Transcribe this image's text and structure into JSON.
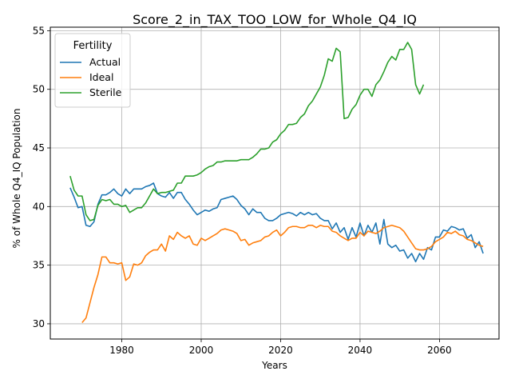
{
  "chart_data": {
    "type": "line",
    "title": "Score_2_in_TAX_TOO_LOW_for_Whole_Q4_IQ",
    "xlabel": "Years",
    "ylabel": "% of Whole Q4_IQ Population",
    "xlim": [
      1962,
      2075
    ],
    "ylim": [
      28.7,
      55.3
    ],
    "xticks": [
      1980,
      2000,
      2020,
      2040,
      2060
    ],
    "yticks": [
      30,
      35,
      40,
      45,
      50,
      55
    ],
    "grid": true,
    "legend": {
      "title": "Fertility",
      "position": "top-left"
    },
    "series": [
      {
        "name": "Actual",
        "color": "#1f77b4",
        "points": [
          [
            1967,
            41.6
          ],
          [
            1968,
            40.8
          ],
          [
            1969,
            39.9
          ],
          [
            1970,
            40.0
          ],
          [
            1971,
            38.4
          ],
          [
            1972,
            38.3
          ],
          [
            1973,
            38.7
          ],
          [
            1974,
            40.2
          ],
          [
            1975,
            41.0
          ],
          [
            1976,
            41.0
          ],
          [
            1977,
            41.2
          ],
          [
            1978,
            41.5
          ],
          [
            1979,
            41.1
          ],
          [
            1980,
            40.9
          ],
          [
            1981,
            41.5
          ],
          [
            1982,
            41.1
          ],
          [
            1983,
            41.5
          ],
          [
            1984,
            41.5
          ],
          [
            1985,
            41.5
          ],
          [
            1986,
            41.7
          ],
          [
            1987,
            41.8
          ],
          [
            1988,
            42.0
          ],
          [
            1989,
            41.1
          ],
          [
            1990,
            40.9
          ],
          [
            1991,
            40.8
          ],
          [
            1992,
            41.2
          ],
          [
            1993,
            40.7
          ],
          [
            1994,
            41.2
          ],
          [
            1995,
            41.2
          ],
          [
            1996,
            40.6
          ],
          [
            1997,
            40.2
          ],
          [
            1998,
            39.7
          ],
          [
            1999,
            39.3
          ],
          [
            2000,
            39.5
          ],
          [
            2001,
            39.7
          ],
          [
            2002,
            39.6
          ],
          [
            2003,
            39.8
          ],
          [
            2004,
            39.9
          ],
          [
            2005,
            40.6
          ],
          [
            2006,
            40.7
          ],
          [
            2007,
            40.8
          ],
          [
            2008,
            40.9
          ],
          [
            2009,
            40.6
          ],
          [
            2010,
            40.1
          ],
          [
            2011,
            39.8
          ],
          [
            2012,
            39.3
          ],
          [
            2013,
            39.8
          ],
          [
            2014,
            39.5
          ],
          [
            2015,
            39.5
          ],
          [
            2016,
            39.0
          ],
          [
            2017,
            38.8
          ],
          [
            2018,
            38.8
          ],
          [
            2019,
            39.0
          ],
          [
            2020,
            39.3
          ],
          [
            2021,
            39.4
          ],
          [
            2022,
            39.5
          ],
          [
            2023,
            39.4
          ],
          [
            2024,
            39.2
          ],
          [
            2025,
            39.5
          ],
          [
            2026,
            39.3
          ],
          [
            2027,
            39.5
          ],
          [
            2028,
            39.3
          ],
          [
            2029,
            39.4
          ],
          [
            2030,
            39.0
          ],
          [
            2031,
            38.8
          ],
          [
            2032,
            38.8
          ],
          [
            2033,
            38.1
          ],
          [
            2034,
            38.6
          ],
          [
            2035,
            37.8
          ],
          [
            2036,
            38.2
          ],
          [
            2037,
            37.2
          ],
          [
            2038,
            38.2
          ],
          [
            2039,
            37.4
          ],
          [
            2040,
            38.6
          ],
          [
            2041,
            37.5
          ],
          [
            2042,
            38.4
          ],
          [
            2043,
            37.8
          ],
          [
            2044,
            38.6
          ],
          [
            2045,
            36.8
          ],
          [
            2046,
            38.9
          ],
          [
            2047,
            36.8
          ],
          [
            2048,
            36.5
          ],
          [
            2049,
            36.7
          ],
          [
            2050,
            36.2
          ],
          [
            2051,
            36.3
          ],
          [
            2052,
            35.6
          ],
          [
            2053,
            36.0
          ],
          [
            2054,
            35.3
          ],
          [
            2055,
            36.0
          ],
          [
            2056,
            35.5
          ],
          [
            2057,
            36.5
          ],
          [
            2058,
            36.3
          ],
          [
            2059,
            37.4
          ],
          [
            2060,
            37.4
          ],
          [
            2061,
            38.0
          ],
          [
            2062,
            37.9
          ],
          [
            2063,
            38.3
          ],
          [
            2064,
            38.2
          ],
          [
            2065,
            38.0
          ],
          [
            2066,
            38.1
          ],
          [
            2067,
            37.3
          ],
          [
            2068,
            37.6
          ],
          [
            2069,
            36.5
          ],
          [
            2070,
            37.0
          ],
          [
            2071,
            36.0
          ]
        ]
      },
      {
        "name": "Ideal",
        "color": "#ff7f0e",
        "points": [
          [
            1970,
            30.1
          ],
          [
            1971,
            30.5
          ],
          [
            1972,
            31.8
          ],
          [
            1973,
            33.1
          ],
          [
            1974,
            34.2
          ],
          [
            1975,
            35.7
          ],
          [
            1976,
            35.7
          ],
          [
            1977,
            35.2
          ],
          [
            1978,
            35.2
          ],
          [
            1979,
            35.1
          ],
          [
            1980,
            35.2
          ],
          [
            1981,
            33.7
          ],
          [
            1982,
            34.0
          ],
          [
            1983,
            35.1
          ],
          [
            1984,
            35.0
          ],
          [
            1985,
            35.2
          ],
          [
            1986,
            35.8
          ],
          [
            1987,
            36.1
          ],
          [
            1988,
            36.3
          ],
          [
            1989,
            36.3
          ],
          [
            1990,
            36.8
          ],
          [
            1991,
            36.2
          ],
          [
            1992,
            37.5
          ],
          [
            1993,
            37.2
          ],
          [
            1994,
            37.8
          ],
          [
            1995,
            37.5
          ],
          [
            1996,
            37.3
          ],
          [
            1997,
            37.5
          ],
          [
            1998,
            36.8
          ],
          [
            1999,
            36.7
          ],
          [
            2000,
            37.3
          ],
          [
            2001,
            37.1
          ],
          [
            2002,
            37.3
          ],
          [
            2003,
            37.5
          ],
          [
            2004,
            37.7
          ],
          [
            2005,
            38.0
          ],
          [
            2006,
            38.1
          ],
          [
            2007,
            38.0
          ],
          [
            2008,
            37.9
          ],
          [
            2009,
            37.7
          ],
          [
            2010,
            37.1
          ],
          [
            2011,
            37.2
          ],
          [
            2012,
            36.7
          ],
          [
            2013,
            36.9
          ],
          [
            2014,
            37.0
          ],
          [
            2015,
            37.1
          ],
          [
            2016,
            37.4
          ],
          [
            2017,
            37.5
          ],
          [
            2018,
            37.8
          ],
          [
            2019,
            38.0
          ],
          [
            2020,
            37.5
          ],
          [
            2021,
            37.8
          ],
          [
            2022,
            38.2
          ],
          [
            2023,
            38.3
          ],
          [
            2024,
            38.3
          ],
          [
            2025,
            38.2
          ],
          [
            2026,
            38.2
          ],
          [
            2027,
            38.4
          ],
          [
            2028,
            38.4
          ],
          [
            2029,
            38.2
          ],
          [
            2030,
            38.4
          ],
          [
            2031,
            38.3
          ],
          [
            2032,
            38.3
          ],
          [
            2033,
            37.9
          ],
          [
            2034,
            37.8
          ],
          [
            2035,
            37.5
          ],
          [
            2036,
            37.3
          ],
          [
            2037,
            37.1
          ],
          [
            2038,
            37.3
          ],
          [
            2039,
            37.3
          ],
          [
            2040,
            37.8
          ],
          [
            2041,
            37.5
          ],
          [
            2042,
            37.9
          ],
          [
            2043,
            37.8
          ],
          [
            2044,
            37.7
          ],
          [
            2045,
            37.9
          ],
          [
            2046,
            38.2
          ],
          [
            2047,
            38.3
          ],
          [
            2048,
            38.4
          ],
          [
            2049,
            38.3
          ],
          [
            2050,
            38.2
          ],
          [
            2051,
            37.9
          ],
          [
            2052,
            37.4
          ],
          [
            2053,
            36.9
          ],
          [
            2054,
            36.4
          ],
          [
            2055,
            36.3
          ],
          [
            2056,
            36.3
          ],
          [
            2057,
            36.4
          ],
          [
            2058,
            36.6
          ],
          [
            2059,
            37.0
          ],
          [
            2060,
            37.2
          ],
          [
            2061,
            37.4
          ],
          [
            2062,
            37.8
          ],
          [
            2063,
            37.7
          ],
          [
            2064,
            37.9
          ],
          [
            2065,
            37.6
          ],
          [
            2066,
            37.5
          ],
          [
            2067,
            37.2
          ],
          [
            2068,
            37.1
          ],
          [
            2069,
            36.9
          ],
          [
            2070,
            36.7
          ],
          [
            2071,
            36.6
          ]
        ]
      },
      {
        "name": "Sterile",
        "color": "#2ca02c",
        "points": [
          [
            1967,
            42.6
          ],
          [
            1968,
            41.4
          ],
          [
            1969,
            40.9
          ],
          [
            1970,
            40.9
          ],
          [
            1971,
            39.3
          ],
          [
            1972,
            38.8
          ],
          [
            1973,
            38.9
          ],
          [
            1974,
            40.1
          ],
          [
            1975,
            40.6
          ],
          [
            1976,
            40.5
          ],
          [
            1977,
            40.6
          ],
          [
            1978,
            40.2
          ],
          [
            1979,
            40.2
          ],
          [
            1980,
            40.0
          ],
          [
            1981,
            40.1
          ],
          [
            1982,
            39.5
          ],
          [
            1983,
            39.7
          ],
          [
            1984,
            39.9
          ],
          [
            1985,
            39.9
          ],
          [
            1986,
            40.3
          ],
          [
            1987,
            40.9
          ],
          [
            1988,
            41.5
          ],
          [
            1989,
            41.1
          ],
          [
            1990,
            41.2
          ],
          [
            1991,
            41.2
          ],
          [
            1992,
            41.3
          ],
          [
            1993,
            41.4
          ],
          [
            1994,
            42.0
          ],
          [
            1995,
            42.0
          ],
          [
            1996,
            42.6
          ],
          [
            1997,
            42.6
          ],
          [
            1998,
            42.6
          ],
          [
            1999,
            42.7
          ],
          [
            2000,
            42.9
          ],
          [
            2001,
            43.2
          ],
          [
            2002,
            43.4
          ],
          [
            2003,
            43.5
          ],
          [
            2004,
            43.8
          ],
          [
            2005,
            43.8
          ],
          [
            2006,
            43.9
          ],
          [
            2007,
            43.9
          ],
          [
            2008,
            43.9
          ],
          [
            2009,
            43.9
          ],
          [
            2010,
            44.0
          ],
          [
            2011,
            44.0
          ],
          [
            2012,
            44.0
          ],
          [
            2013,
            44.2
          ],
          [
            2014,
            44.5
          ],
          [
            2015,
            44.9
          ],
          [
            2016,
            44.9
          ],
          [
            2017,
            45.0
          ],
          [
            2018,
            45.5
          ],
          [
            2019,
            45.7
          ],
          [
            2020,
            46.2
          ],
          [
            2021,
            46.5
          ],
          [
            2022,
            47.0
          ],
          [
            2023,
            47.0
          ],
          [
            2024,
            47.1
          ],
          [
            2025,
            47.6
          ],
          [
            2026,
            47.9
          ],
          [
            2027,
            48.6
          ],
          [
            2028,
            49.0
          ],
          [
            2029,
            49.6
          ],
          [
            2030,
            50.2
          ],
          [
            2031,
            51.2
          ],
          [
            2032,
            52.6
          ],
          [
            2033,
            52.4
          ],
          [
            2034,
            53.5
          ],
          [
            2035,
            53.2
          ],
          [
            2036,
            47.5
          ],
          [
            2037,
            47.6
          ],
          [
            2038,
            48.3
          ],
          [
            2039,
            48.7
          ],
          [
            2040,
            49.5
          ],
          [
            2041,
            50.0
          ],
          [
            2042,
            50.0
          ],
          [
            2043,
            49.4
          ],
          [
            2044,
            50.4
          ],
          [
            2045,
            50.8
          ],
          [
            2046,
            51.5
          ],
          [
            2047,
            52.3
          ],
          [
            2048,
            52.8
          ],
          [
            2049,
            52.5
          ],
          [
            2050,
            53.4
          ],
          [
            2051,
            53.4
          ],
          [
            2052,
            54.0
          ],
          [
            2053,
            53.4
          ],
          [
            2054,
            50.4
          ],
          [
            2055,
            49.6
          ],
          [
            2056,
            50.4
          ]
        ]
      }
    ]
  }
}
